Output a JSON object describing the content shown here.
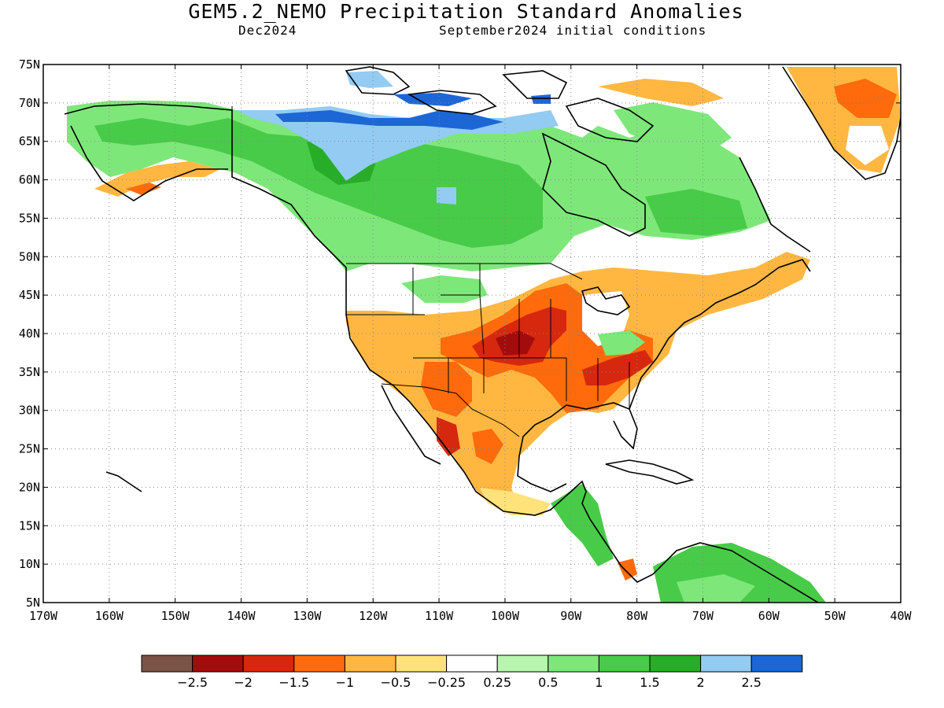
{
  "title": "GEM5.2_NEMO Precipitation Standard Anomalies",
  "subtitle_left": "Dec2024",
  "subtitle_right": "September2024 initial conditions",
  "lat_labels": [
    "75N",
    "70N",
    "65N",
    "60N",
    "55N",
    "50N",
    "45N",
    "40N",
    "35N",
    "30N",
    "25N",
    "20N",
    "15N",
    "10N",
    "5N"
  ],
  "lon_labels": [
    "170W",
    "160W",
    "150W",
    "140W",
    "130W",
    "120W",
    "110W",
    "100W",
    "90W",
    "80W",
    "70W",
    "60W",
    "50W",
    "40W"
  ],
  "colorbar": {
    "colors": [
      "#7b5347",
      "#a30c0c",
      "#d6280f",
      "#ff6b0c",
      "#ffb742",
      "#ffe27a",
      "#ffffff",
      "#b8f5ae",
      "#7ee77a",
      "#48cb48",
      "#27ad27",
      "#93cbf2",
      "#1c66d6"
    ],
    "labels": [
      "−2.5",
      "−2",
      "−1.5",
      "−1",
      "−0.5",
      "−0.25",
      "0.25",
      "0.5",
      "1",
      "1.5",
      "2",
      "2.5"
    ]
  },
  "anomaly_regions": [
    {
      "name": "central-us-dry-core",
      "color": "#a30c0c"
    },
    {
      "name": "southern-us-dry",
      "color": "#d6280f"
    },
    {
      "name": "gulf-coast-dry",
      "color": "#ff6b0c"
    },
    {
      "name": "southwest-dry",
      "color": "#ffb742"
    },
    {
      "name": "canada-wet",
      "color": "#48cb48"
    },
    {
      "name": "arctic-wet",
      "color": "#93cbf2"
    },
    {
      "name": "arctic-very-wet",
      "color": "#1c66d6"
    },
    {
      "name": "greenland-dry",
      "color": "#ffb742"
    },
    {
      "name": "south-america-wet",
      "color": "#48cb48"
    }
  ]
}
